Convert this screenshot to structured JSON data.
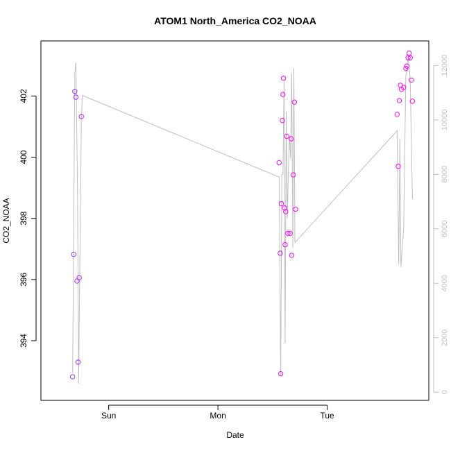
{
  "chart_data": {
    "type": "scatter",
    "title": "ATOM1 North_America CO2_NOAA",
    "xlabel": "Date",
    "ylabel": "CO2_NOAA",
    "xlim": [
      -0.62,
      2.93
    ],
    "ylim": [
      392.05,
      403.8
    ],
    "x_ticks": [
      {
        "label": "Sun",
        "value": 0
      },
      {
        "label": "Mon",
        "value": 1
      },
      {
        "label": "Tue",
        "value": 2
      }
    ],
    "y_ticks": [
      394,
      396,
      398,
      400,
      402
    ],
    "y2lim": [
      -300,
      12900
    ],
    "y2_ticks": [
      0,
      2000,
      4000,
      6000,
      8000,
      10000,
      12000
    ],
    "grid": false,
    "colors": {
      "line": "#bebebe",
      "axis": "#000000",
      "right_axis": "#bebebe",
      "points_start": "#7a3cff",
      "points_end": "#ff00ff"
    },
    "series": [
      {
        "type": "points",
        "values": [
          {
            "x": -0.33,
            "y": 392.82
          },
          {
            "x": -0.32,
            "y": 396.82
          },
          {
            "x": -0.31,
            "y": 402.15
          },
          {
            "x": -0.3,
            "y": 401.96
          },
          {
            "x": -0.29,
            "y": 395.95
          },
          {
            "x": -0.28,
            "y": 393.3
          },
          {
            "x": -0.27,
            "y": 396.06
          },
          {
            "x": -0.25,
            "y": 401.33
          },
          {
            "x": 1.56,
            "y": 399.82
          },
          {
            "x": 1.57,
            "y": 396.86
          },
          {
            "x": 1.575,
            "y": 392.92
          },
          {
            "x": 1.58,
            "y": 398.48
          },
          {
            "x": 1.59,
            "y": 401.2
          },
          {
            "x": 1.595,
            "y": 402.05
          },
          {
            "x": 1.6,
            "y": 402.58
          },
          {
            "x": 1.61,
            "y": 398.34
          },
          {
            "x": 1.615,
            "y": 397.14
          },
          {
            "x": 1.62,
            "y": 398.22
          },
          {
            "x": 1.63,
            "y": 400.68
          },
          {
            "x": 1.64,
            "y": 397.51
          },
          {
            "x": 1.66,
            "y": 397.51
          },
          {
            "x": 1.67,
            "y": 400.6
          },
          {
            "x": 1.675,
            "y": 396.79
          },
          {
            "x": 1.69,
            "y": 399.42
          },
          {
            "x": 1.7,
            "y": 401.8
          },
          {
            "x": 1.71,
            "y": 398.3
          },
          {
            "x": 2.64,
            "y": 401.4
          },
          {
            "x": 2.65,
            "y": 399.7
          },
          {
            "x": 2.66,
            "y": 401.85
          },
          {
            "x": 2.67,
            "y": 402.35
          },
          {
            "x": 2.68,
            "y": 402.22
          },
          {
            "x": 2.7,
            "y": 402.28
          },
          {
            "x": 2.72,
            "y": 402.9
          },
          {
            "x": 2.73,
            "y": 402.98
          },
          {
            "x": 2.74,
            "y": 403.25
          },
          {
            "x": 2.75,
            "y": 403.4
          },
          {
            "x": 2.76,
            "y": 403.25
          },
          {
            "x": 2.77,
            "y": 402.52
          },
          {
            "x": 2.78,
            "y": 401.83
          }
        ]
      },
      {
        "type": "line",
        "axis": "right",
        "values": [
          {
            "x": -0.33,
            "y": 700
          },
          {
            "x": -0.31,
            "y": 11700
          },
          {
            "x": -0.3,
            "y": 12100
          },
          {
            "x": -0.285,
            "y": 7300
          },
          {
            "x": -0.275,
            "y": 300
          },
          {
            "x": -0.25,
            "y": 10100
          },
          {
            "x": -0.24,
            "y": 10900
          },
          {
            "x": 1.56,
            "y": 7900
          },
          {
            "x": 1.575,
            "y": 600
          },
          {
            "x": 1.585,
            "y": 8000
          },
          {
            "x": 1.595,
            "y": 8000
          },
          {
            "x": 1.605,
            "y": 11500
          },
          {
            "x": 1.615,
            "y": 1800
          },
          {
            "x": 1.625,
            "y": 10300
          },
          {
            "x": 1.635,
            "y": 6400
          },
          {
            "x": 1.645,
            "y": 8200
          },
          {
            "x": 1.655,
            "y": 9400
          },
          {
            "x": 1.665,
            "y": 8600
          },
          {
            "x": 1.675,
            "y": 11700
          },
          {
            "x": 1.685,
            "y": 5300
          },
          {
            "x": 1.695,
            "y": 11900
          },
          {
            "x": 1.705,
            "y": 5500
          },
          {
            "x": 2.64,
            "y": 9600
          },
          {
            "x": 2.655,
            "y": 4700
          },
          {
            "x": 2.665,
            "y": 9300
          },
          {
            "x": 2.675,
            "y": 4600
          },
          {
            "x": 2.7,
            "y": 6000
          },
          {
            "x": 2.72,
            "y": 11600
          },
          {
            "x": 2.74,
            "y": 12300
          },
          {
            "x": 2.76,
            "y": 11500
          },
          {
            "x": 2.78,
            "y": 7100
          }
        ]
      }
    ]
  }
}
